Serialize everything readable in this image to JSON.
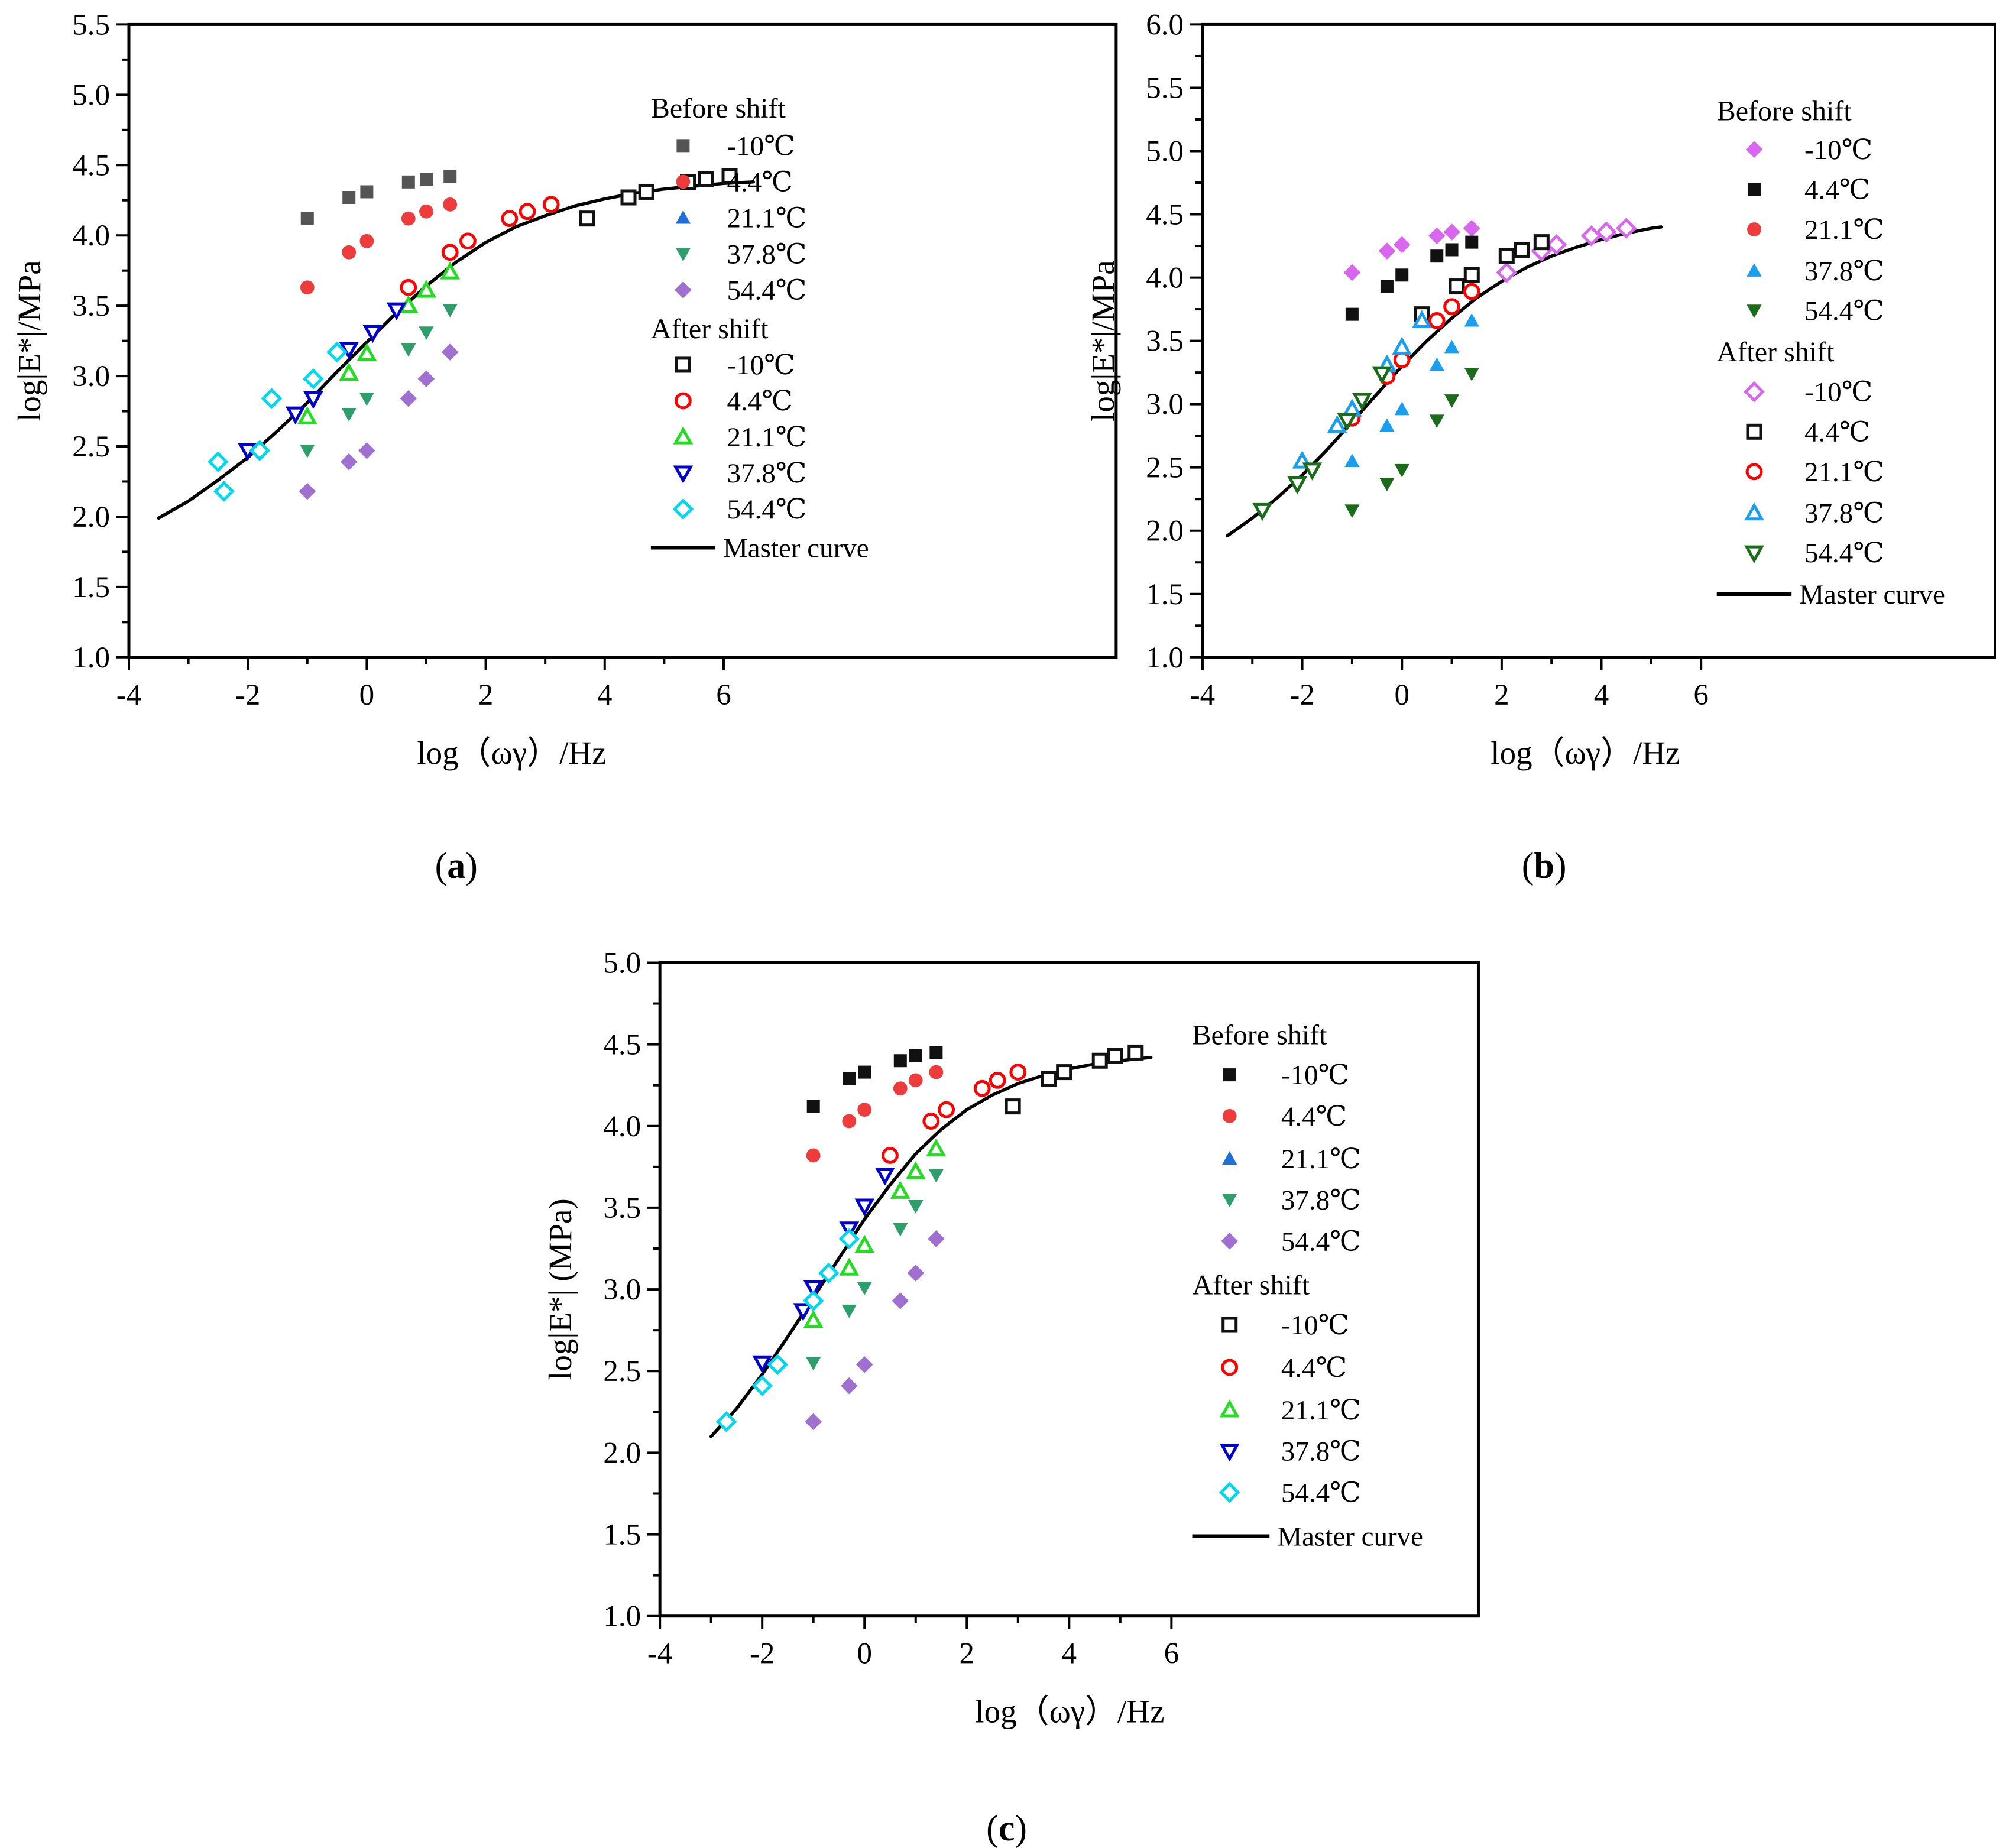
{
  "colors": {
    "dark_gray": "#555555",
    "red": "#ee3b3b",
    "blue_a": "#1f6fd6",
    "teal_green": "#2e9e6b",
    "purple": "#a070d0",
    "bright_red": "#ff0000",
    "green_bright": "#22dd22",
    "navy_blue": "#0000cc",
    "cyan": "#00d8f0",
    "magenta": "#d966ee",
    "black": "#111111",
    "light_blue": "#1a9fef",
    "dark_green": "#1a6b1a"
  },
  "chart_data": [
    {
      "type": "scatter",
      "panel_label": "(a)",
      "title": "",
      "xlabel": "log（ωγ）/Hz",
      "ylabel": "log|E*|/MPa",
      "xlim": [
        -4,
        12.6
      ],
      "ylim": [
        1.0,
        5.5
      ],
      "xticks": [
        -4,
        -2,
        0,
        2,
        4,
        6
      ],
      "xtick_labels": [
        "-4",
        "-2",
        "0",
        "2",
        "4",
        "6"
      ],
      "yticks": [
        1.0,
        1.5,
        2.0,
        2.5,
        3.0,
        3.5,
        4.0,
        4.5,
        5.0,
        5.5
      ],
      "ytick_labels": [
        "1.0",
        "1.5",
        "2.0",
        "2.5",
        "3.0",
        "3.5",
        "4.0",
        "4.5",
        "5.0",
        "5.5"
      ],
      "legend": {
        "before_title": "Before shift",
        "after_title": "After shift",
        "master_label": "Master curve",
        "placement": "top-right"
      },
      "series": [
        {
          "name": "-10℃",
          "group": "before",
          "marker": "square",
          "filled": true,
          "color": "#555555",
          "x": [
            -1.0,
            -0.3,
            0.0,
            0.7,
            1.0,
            1.4
          ],
          "y": [
            4.12,
            4.27,
            4.31,
            4.38,
            4.4,
            4.42
          ]
        },
        {
          "name": "4.4℃",
          "group": "before",
          "marker": "circle",
          "filled": true,
          "color": "#ee3b3b",
          "x": [
            -1.0,
            -0.3,
            0.0,
            0.7,
            1.0,
            1.4
          ],
          "y": [
            3.63,
            3.88,
            3.96,
            4.12,
            4.17,
            4.22
          ]
        },
        {
          "name": "21.1℃",
          "group": "before",
          "marker": "triangle-up",
          "filled": true,
          "color": "#1f6fd6",
          "x": [],
          "y": []
        },
        {
          "name": "37.8℃",
          "group": "before",
          "marker": "triangle-down",
          "filled": true,
          "color": "#2e9e6b",
          "x": [
            -1.0,
            -0.3,
            0.0,
            0.7,
            1.0,
            1.4
          ],
          "y": [
            2.47,
            2.73,
            2.84,
            3.19,
            3.31,
            3.47
          ]
        },
        {
          "name": "54.4℃",
          "group": "before",
          "marker": "diamond",
          "filled": true,
          "color": "#a070d0",
          "x": [
            -1.0,
            -0.3,
            0.0,
            0.7,
            1.0,
            1.4
          ],
          "y": [
            2.18,
            2.39,
            2.47,
            2.84,
            2.98,
            3.17
          ]
        },
        {
          "name": "-10℃",
          "group": "after",
          "marker": "square",
          "filled": false,
          "color": "#111111",
          "x": [
            3.7,
            4.4,
            4.7,
            5.4,
            5.7,
            6.1
          ],
          "y": [
            4.12,
            4.27,
            4.31,
            4.38,
            4.4,
            4.42
          ]
        },
        {
          "name": "4.4℃",
          "group": "after",
          "marker": "circle",
          "filled": false,
          "color": "#ff0000",
          "x": [
            0.7,
            1.4,
            1.7,
            2.4,
            2.7,
            3.1
          ],
          "y": [
            3.63,
            3.88,
            3.96,
            4.12,
            4.17,
            4.22
          ]
        },
        {
          "name": "21.1℃",
          "group": "after",
          "marker": "triangle-up",
          "filled": false,
          "color": "#22dd22",
          "x": [
            -1.0,
            -0.3,
            0.0,
            0.7,
            1.0,
            1.4
          ],
          "y": [
            2.71,
            3.02,
            3.16,
            3.5,
            3.61,
            3.74
          ]
        },
        {
          "name": "37.8℃",
          "group": "after",
          "marker": "triangle-down",
          "filled": false,
          "color": "#0000cc",
          "x": [
            -2.0,
            -1.2,
            -0.9,
            -0.3,
            0.1,
            0.5
          ],
          "y": [
            2.47,
            2.73,
            2.84,
            3.19,
            3.31,
            3.47
          ]
        },
        {
          "name": "54.4℃",
          "group": "after",
          "marker": "diamond",
          "filled": false,
          "color": "#00d8f0",
          "x": [
            -2.5,
            -2.4,
            -1.8,
            -1.6,
            -0.9,
            -0.5
          ],
          "y": [
            2.39,
            2.18,
            2.47,
            2.84,
            2.98,
            3.17
          ]
        },
        {
          "name": "Master curve",
          "group": "master",
          "marker": "line",
          "filled": false,
          "color": "#000000",
          "x": [
            -3.5,
            -3.0,
            -2.5,
            -2.0,
            -1.5,
            -1.0,
            -0.5,
            0.0,
            0.5,
            1.0,
            1.5,
            2.0,
            2.5,
            3.0,
            3.5,
            4.0,
            4.5,
            5.0,
            5.5,
            6.0,
            6.5
          ],
          "y": [
            1.99,
            2.11,
            2.26,
            2.42,
            2.61,
            2.81,
            3.03,
            3.24,
            3.45,
            3.64,
            3.81,
            3.95,
            4.06,
            4.14,
            4.21,
            4.26,
            4.3,
            4.33,
            4.35,
            4.37,
            4.38
          ]
        }
      ]
    },
    {
      "type": "scatter",
      "panel_label": "(b)",
      "title": "",
      "xlabel": "log（ωγ）/Hz",
      "ylabel": "log|E*|/MPa",
      "xlim": [
        -4,
        11.9
      ],
      "ylim": [
        1.0,
        6.0
      ],
      "xticks": [
        -4,
        -2,
        0,
        2,
        4,
        6
      ],
      "xtick_labels": [
        "-4",
        "-2",
        "0",
        "2",
        "4",
        "6"
      ],
      "yticks": [
        1.0,
        1.5,
        2.0,
        2.5,
        3.0,
        3.5,
        4.0,
        4.5,
        5.0,
        5.5,
        6.0
      ],
      "ytick_labels": [
        "1.0",
        "1.5",
        "2.0",
        "2.5",
        "3.0",
        "3.5",
        "4.0",
        "4.5",
        "5.0",
        "5.5",
        "6.0"
      ],
      "legend": {
        "before_title": "Before shift",
        "after_title": "After shift",
        "master_label": "Master curve",
        "placement": "top-right"
      },
      "series": [
        {
          "name": "-10℃",
          "group": "before",
          "marker": "diamond",
          "filled": true,
          "color": "#d966ee",
          "x": [
            -1.0,
            -0.3,
            0.0,
            0.7,
            1.0,
            1.4
          ],
          "y": [
            4.04,
            4.21,
            4.26,
            4.33,
            4.36,
            4.39
          ]
        },
        {
          "name": "4.4℃",
          "group": "before",
          "marker": "square",
          "filled": true,
          "color": "#111111",
          "x": [
            -1.0,
            -0.3,
            0.0,
            0.7,
            1.0,
            1.4
          ],
          "y": [
            3.71,
            3.93,
            4.02,
            4.17,
            4.22,
            4.28
          ]
        },
        {
          "name": "21.1℃",
          "group": "before",
          "marker": "circle",
          "filled": true,
          "color": "#ee3b3b",
          "x": [],
          "y": []
        },
        {
          "name": "37.8℃",
          "group": "before",
          "marker": "triangle-up",
          "filled": true,
          "color": "#1a9fef",
          "x": [
            -1.0,
            -0.3,
            0.0,
            0.7,
            1.0,
            1.4
          ],
          "y": [
            2.55,
            2.83,
            2.96,
            3.31,
            3.45,
            3.66
          ]
        },
        {
          "name": "54.4℃",
          "group": "before",
          "marker": "triangle-down",
          "filled": true,
          "color": "#1a6b1a",
          "x": [
            -1.0,
            -0.3,
            0.0,
            0.7,
            1.0,
            1.4
          ],
          "y": [
            2.16,
            2.37,
            2.48,
            2.87,
            3.03,
            3.24
          ]
        },
        {
          "name": "-10℃",
          "group": "after",
          "marker": "diamond",
          "filled": false,
          "color": "#d966ee",
          "x": [
            2.1,
            2.8,
            3.1,
            3.8,
            4.1,
            4.5
          ],
          "y": [
            4.04,
            4.21,
            4.26,
            4.33,
            4.36,
            4.39
          ]
        },
        {
          "name": "4.4℃",
          "group": "after",
          "marker": "square",
          "filled": false,
          "color": "#111111",
          "x": [
            0.4,
            1.1,
            1.4,
            2.1,
            2.4,
            2.8
          ],
          "y": [
            3.71,
            3.93,
            4.02,
            4.17,
            4.22,
            4.28
          ]
        },
        {
          "name": "21.1℃",
          "group": "after",
          "marker": "circle",
          "filled": false,
          "color": "#ff0000",
          "x": [
            -1.0,
            -0.3,
            0.0,
            0.7,
            1.0,
            1.4
          ],
          "y": [
            2.89,
            3.22,
            3.35,
            3.66,
            3.77,
            3.89
          ]
        },
        {
          "name": "37.8℃",
          "group": "after",
          "marker": "triangle-up",
          "filled": false,
          "color": "#1a9fef",
          "x": [
            -2.0,
            -1.3,
            -1.0,
            -0.3,
            0.0,
            0.4
          ],
          "y": [
            2.55,
            2.83,
            2.96,
            3.31,
            3.45,
            3.66
          ]
        },
        {
          "name": "54.4℃",
          "group": "after",
          "marker": "triangle-down",
          "filled": false,
          "color": "#1a6b1a",
          "x": [
            -2.8,
            -2.1,
            -1.8,
            -1.1,
            -0.8,
            -0.4
          ],
          "y": [
            2.16,
            2.37,
            2.48,
            2.87,
            3.03,
            3.24
          ]
        },
        {
          "name": "Master curve",
          "group": "master",
          "marker": "line",
          "filled": false,
          "color": "#000000",
          "x": [
            -3.5,
            -3.0,
            -2.5,
            -2.0,
            -1.5,
            -1.0,
            -0.5,
            0.0,
            0.5,
            1.0,
            1.5,
            2.0,
            2.5,
            3.0,
            3.5,
            4.0,
            4.5,
            5.0,
            5.2
          ],
          "y": [
            1.96,
            2.1,
            2.26,
            2.44,
            2.64,
            2.86,
            3.08,
            3.3,
            3.5,
            3.68,
            3.84,
            3.97,
            4.08,
            4.17,
            4.24,
            4.3,
            4.35,
            4.39,
            4.4
          ]
        }
      ]
    },
    {
      "type": "scatter",
      "panel_label": "(c)",
      "title": "",
      "xlabel": "log（ωγ）/Hz",
      "ylabel": "log|E*| (MPa)",
      "xlim": [
        -4,
        12.0
      ],
      "ylim": [
        1.0,
        5.0
      ],
      "xticks": [
        -4,
        -2,
        0,
        2,
        4,
        6
      ],
      "xtick_labels": [
        "-4",
        "-2",
        "0",
        "2",
        "4",
        "6"
      ],
      "yticks": [
        1.0,
        1.5,
        2.0,
        2.5,
        3.0,
        3.5,
        4.0,
        4.5,
        5.0
      ],
      "ytick_labels": [
        "1.0",
        "1.5",
        "2.0",
        "2.5",
        "3.0",
        "3.5",
        "4.0",
        "4.5",
        "5.0"
      ],
      "legend": {
        "before_title": "Before shift",
        "after_title": "After shift",
        "master_label": "Master curve",
        "placement": "top-right"
      },
      "series": [
        {
          "name": "-10℃",
          "group": "before",
          "marker": "square",
          "filled": true,
          "color": "#111111",
          "x": [
            -1.0,
            -0.3,
            0.0,
            0.7,
            1.0,
            1.4
          ],
          "y": [
            4.12,
            4.29,
            4.33,
            4.4,
            4.43,
            4.45
          ]
        },
        {
          "name": "4.4℃",
          "group": "before",
          "marker": "circle",
          "filled": true,
          "color": "#ee3b3b",
          "x": [
            -1.0,
            -0.3,
            0.0,
            0.7,
            1.0,
            1.4
          ],
          "y": [
            3.82,
            4.03,
            4.1,
            4.23,
            4.28,
            4.33
          ]
        },
        {
          "name": "21.1℃",
          "group": "before",
          "marker": "triangle-up",
          "filled": true,
          "color": "#1f6fd6",
          "x": [],
          "y": []
        },
        {
          "name": "37.8℃",
          "group": "before",
          "marker": "triangle-down",
          "filled": true,
          "color": "#2e9e6b",
          "x": [
            -1.0,
            -0.3,
            0.0,
            0.7,
            1.0,
            1.4
          ],
          "y": [
            2.55,
            2.87,
            3.01,
            3.37,
            3.51,
            3.7
          ]
        },
        {
          "name": "54.4℃",
          "group": "before",
          "marker": "diamond",
          "filled": true,
          "color": "#a070d0",
          "x": [
            -1.0,
            -0.3,
            0.0,
            0.7,
            1.0,
            1.4
          ],
          "y": [
            2.19,
            2.41,
            2.54,
            2.93,
            3.1,
            3.31
          ]
        },
        {
          "name": "-10℃",
          "group": "after",
          "marker": "square",
          "filled": false,
          "color": "#111111",
          "x": [
            2.9,
            3.6,
            3.9,
            4.6,
            4.9,
            5.3
          ],
          "y": [
            4.12,
            4.29,
            4.33,
            4.4,
            4.43,
            4.45
          ]
        },
        {
          "name": "4.4℃",
          "group": "after",
          "marker": "circle",
          "filled": false,
          "color": "#ff0000",
          "x": [
            0.5,
            1.3,
            1.6,
            2.3,
            2.6,
            3.0
          ],
          "y": [
            3.82,
            4.03,
            4.1,
            4.23,
            4.28,
            4.33
          ]
        },
        {
          "name": "21.1℃",
          "group": "after",
          "marker": "triangle-up",
          "filled": false,
          "color": "#22dd22",
          "x": [
            -1.0,
            -0.3,
            0.0,
            0.7,
            1.0,
            1.4
          ],
          "y": [
            2.81,
            3.13,
            3.27,
            3.6,
            3.72,
            3.86
          ]
        },
        {
          "name": "37.8℃",
          "group": "after",
          "marker": "triangle-down",
          "filled": false,
          "color": "#0000cc",
          "x": [
            -2.0,
            -1.2,
            -1.0,
            -0.3,
            0.0,
            0.4
          ],
          "y": [
            2.55,
            2.87,
            3.01,
            3.37,
            3.51,
            3.7
          ]
        },
        {
          "name": "54.4℃",
          "group": "after",
          "marker": "diamond",
          "filled": false,
          "color": "#00d8f0",
          "x": [
            -2.7,
            -2.0,
            -1.7,
            -1.0,
            -0.7,
            -0.3
          ],
          "y": [
            2.19,
            2.41,
            2.54,
            2.93,
            3.1,
            3.31
          ]
        },
        {
          "name": "Master curve",
          "group": "master",
          "marker": "line",
          "filled": false,
          "color": "#000000",
          "x": [
            -3.0,
            -2.5,
            -2.0,
            -1.5,
            -1.0,
            -0.5,
            0.0,
            0.5,
            1.0,
            1.5,
            2.0,
            2.5,
            3.0,
            3.5,
            4.0,
            4.5,
            5.0,
            5.6
          ],
          "y": [
            2.1,
            2.27,
            2.48,
            2.71,
            2.95,
            3.19,
            3.43,
            3.64,
            3.83,
            3.98,
            4.1,
            4.19,
            4.26,
            4.31,
            4.35,
            4.38,
            4.4,
            4.42
          ]
        }
      ]
    }
  ]
}
